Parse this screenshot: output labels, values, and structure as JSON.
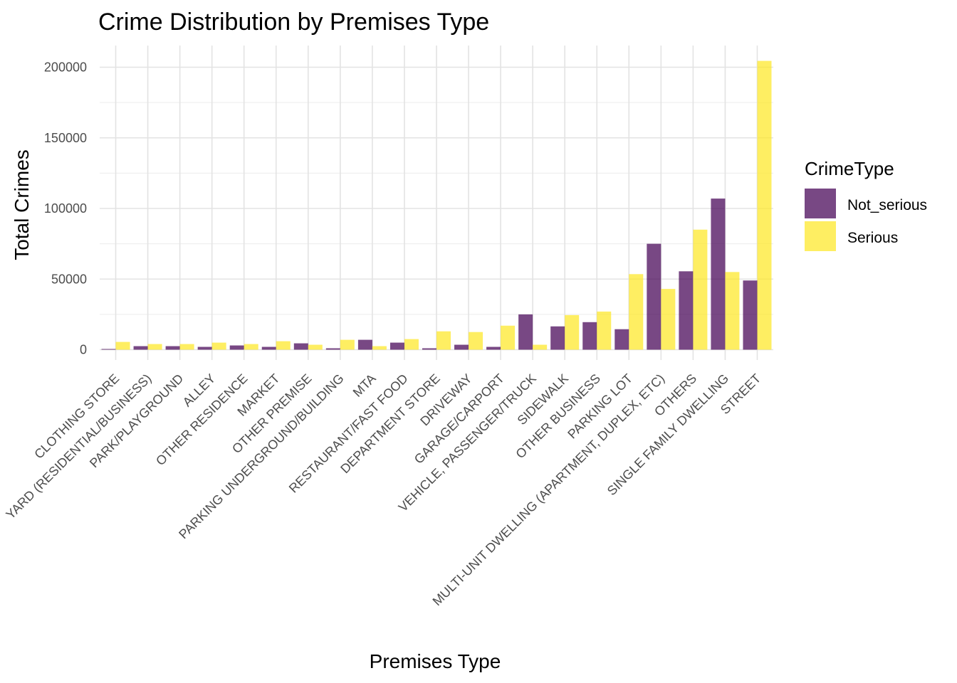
{
  "chart_data": {
    "type": "bar",
    "title": "Crime Distribution by Premises Type",
    "xlabel": "Premises Type",
    "ylabel": "Total Crimes",
    "ylim": [
      0,
      210000
    ],
    "yticks": [
      0,
      50000,
      100000,
      150000,
      200000
    ],
    "ytick_labels": [
      "0",
      "50000",
      "100000",
      "150000",
      "200000"
    ],
    "grid": true,
    "legend": {
      "title": "CrimeType",
      "position": "right"
    },
    "categories": [
      "CLOTHING STORE",
      "YARD (RESIDENTIAL/BUSINESS)",
      "PARK/PLAYGROUND",
      "ALLEY",
      "OTHER RESIDENCE",
      "MARKET",
      "OTHER PREMISE",
      "PARKING UNDERGROUND/BUILDING",
      "MTA",
      "RESTAURANT/FAST FOOD",
      "DEPARTMENT STORE",
      "DRIVEWAY",
      "GARAGE/CARPORT",
      "VEHICLE, PASSENGER/TRUCK",
      "SIDEWALK",
      "OTHER BUSINESS",
      "PARKING LOT",
      "MULTI-UNIT DWELLING (APARTMENT, DUPLEX, ETC)",
      "OTHERS",
      "SINGLE FAMILY DWELLING",
      "STREET"
    ],
    "series": [
      {
        "name": "Not_serious",
        "color": "#440154",
        "values": [
          500,
          2500,
          2500,
          2000,
          3000,
          2000,
          4500,
          1000,
          7000,
          5000,
          1000,
          3500,
          2000,
          25000,
          16500,
          19500,
          14500,
          75000,
          55500,
          107000,
          49000
        ]
      },
      {
        "name": "Serious",
        "color": "#FDE725",
        "values": [
          5500,
          4000,
          4000,
          5000,
          4000,
          6000,
          3500,
          7000,
          2500,
          7500,
          13000,
          12500,
          17000,
          3500,
          24500,
          27000,
          53500,
          43000,
          85000,
          55000,
          204500
        ]
      }
    ]
  }
}
